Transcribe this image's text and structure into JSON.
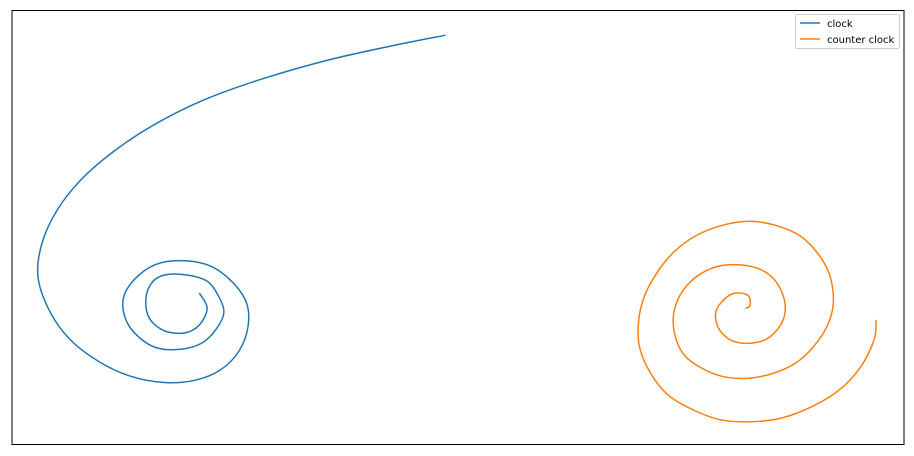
{
  "chart_data": {
    "type": "line",
    "title": "",
    "xlabel": "",
    "ylabel": "",
    "axes_visible": false,
    "grid": false,
    "legend_position": "top-right",
    "series": [
      {
        "name": "clock",
        "color": "#1f77b4",
        "curve": "logarithmic spiral, clockwise, unwinding from an inner point near the lower-left into a large arc that sweeps up and ends at the top",
        "points": [
          [
            1.01,
            0.58
          ],
          [
            1.05,
            0.51
          ],
          [
            1.01,
            0.43
          ],
          [
            0.93,
            0.39
          ],
          [
            0.82,
            0.4
          ],
          [
            0.74,
            0.46
          ],
          [
            0.72,
            0.55
          ],
          [
            0.75,
            0.63
          ],
          [
            0.82,
            0.67
          ],
          [
            0.94,
            0.67
          ],
          [
            1.05,
            0.64
          ],
          [
            1.11,
            0.57
          ],
          [
            1.14,
            0.49
          ],
          [
            1.1,
            0.41
          ],
          [
            1.02,
            0.34
          ],
          [
            0.9,
            0.31
          ],
          [
            0.77,
            0.32
          ],
          [
            0.67,
            0.38
          ],
          [
            0.61,
            0.46
          ],
          [
            0.6,
            0.56
          ],
          [
            0.66,
            0.65
          ],
          [
            0.77,
            0.72
          ],
          [
            0.9,
            0.74
          ],
          [
            1.05,
            0.72
          ],
          [
            1.17,
            0.65
          ],
          [
            1.26,
            0.54
          ],
          [
            1.27,
            0.42
          ],
          [
            1.22,
            0.3
          ],
          [
            1.12,
            0.21
          ],
          [
            0.98,
            0.16
          ],
          [
            0.82,
            0.15
          ],
          [
            0.64,
            0.18
          ],
          [
            0.47,
            0.25
          ],
          [
            0.31,
            0.36
          ],
          [
            0.2,
            0.5
          ],
          [
            0.14,
            0.66
          ],
          [
            0.16,
            0.82
          ],
          [
            0.24,
            0.98
          ],
          [
            0.37,
            1.13
          ],
          [
            0.55,
            1.27
          ],
          [
            0.77,
            1.4
          ],
          [
            1.04,
            1.52
          ],
          [
            1.35,
            1.62
          ],
          [
            1.7,
            1.71
          ],
          [
            2.05,
            1.78
          ],
          [
            2.33,
            1.83
          ]
        ]
      },
      {
        "name": "counter clock",
        "color": "#ff7f0e",
        "curve": "Archimedean spiral, counterclockwise, winding outward from a centre at the lower-right",
        "points": [
          [
            3.95,
            0.51
          ],
          [
            3.97,
            0.52
          ],
          [
            3.97,
            0.56
          ],
          [
            3.94,
            0.58
          ],
          [
            3.88,
            0.58
          ],
          [
            3.83,
            0.55
          ],
          [
            3.79,
            0.5
          ],
          [
            3.79,
            0.44
          ],
          [
            3.82,
            0.39
          ],
          [
            3.88,
            0.35
          ],
          [
            3.97,
            0.34
          ],
          [
            4.06,
            0.36
          ],
          [
            4.13,
            0.42
          ],
          [
            4.16,
            0.49
          ],
          [
            4.15,
            0.57
          ],
          [
            4.1,
            0.65
          ],
          [
            4.02,
            0.7
          ],
          [
            3.91,
            0.72
          ],
          [
            3.79,
            0.71
          ],
          [
            3.68,
            0.66
          ],
          [
            3.6,
            0.58
          ],
          [
            3.56,
            0.48
          ],
          [
            3.57,
            0.37
          ],
          [
            3.62,
            0.28
          ],
          [
            3.71,
            0.22
          ],
          [
            3.82,
            0.18
          ],
          [
            3.95,
            0.17
          ],
          [
            4.08,
            0.19
          ],
          [
            4.21,
            0.24
          ],
          [
            4.31,
            0.32
          ],
          [
            4.39,
            0.43
          ],
          [
            4.42,
            0.54
          ],
          [
            4.4,
            0.67
          ],
          [
            4.34,
            0.77
          ],
          [
            4.24,
            0.86
          ],
          [
            4.11,
            0.91
          ],
          [
            3.97,
            0.93
          ],
          [
            3.82,
            0.91
          ],
          [
            3.68,
            0.86
          ],
          [
            3.56,
            0.78
          ],
          [
            3.47,
            0.68
          ],
          [
            3.4,
            0.56
          ],
          [
            3.37,
            0.43
          ],
          [
            3.38,
            0.31
          ],
          [
            3.44,
            0.19
          ],
          [
            3.53,
            0.09
          ],
          [
            3.66,
            0.02
          ],
          [
            3.81,
            -0.03
          ],
          [
            3.98,
            -0.04
          ],
          [
            4.15,
            -0.02
          ],
          [
            4.32,
            0.04
          ],
          [
            4.46,
            0.12
          ],
          [
            4.57,
            0.23
          ],
          [
            4.64,
            0.36
          ],
          [
            4.65,
            0.45
          ]
        ]
      }
    ]
  }
}
